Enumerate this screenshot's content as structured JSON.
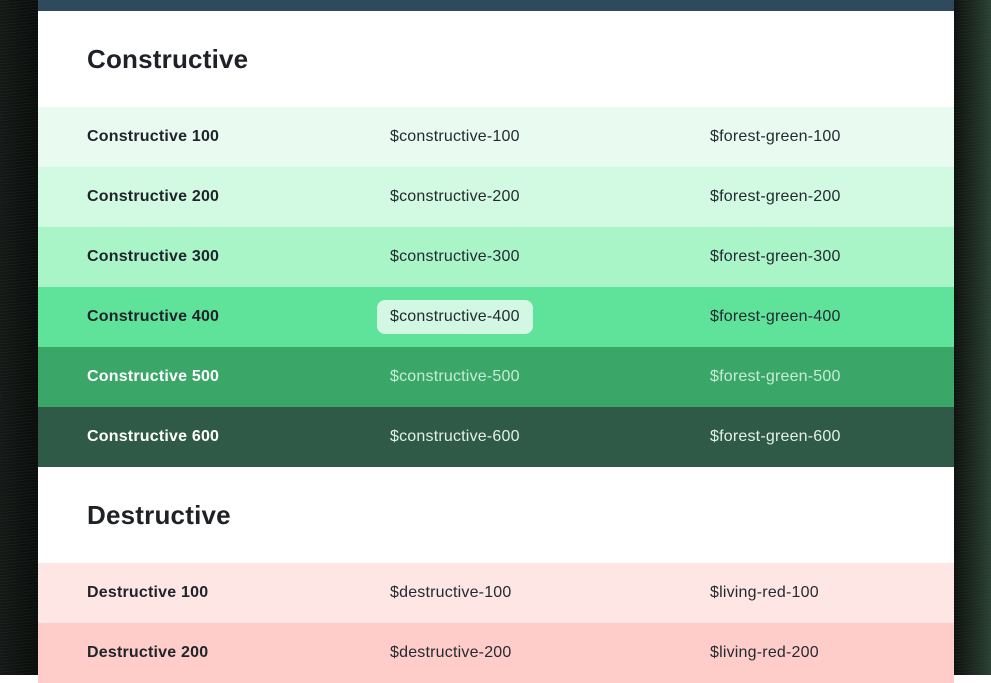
{
  "frame": {
    "backdrop_color": "#0b0d0c",
    "topbar_color": "#2f4a5d",
    "page_bg": "#ffffff",
    "highlight_pill_bg": "#d2f7e3",
    "heading_text_color": "#1e2126"
  },
  "sections": [
    {
      "title": "Constructive",
      "rows": [
        {
          "name": "Constructive 100",
          "variable": "$constructive-100",
          "alias": "$forest-green-100",
          "swatch": "#e9faf0",
          "label_color": "#1f232a",
          "value_color": "#242a31",
          "highlight_variable": false
        },
        {
          "name": "Constructive 200",
          "variable": "$constructive-200",
          "alias": "$forest-green-200",
          "swatch": "#d2fae3",
          "label_color": "#1f232a",
          "value_color": "#242a31",
          "highlight_variable": false
        },
        {
          "name": "Constructive 300",
          "variable": "$constructive-300",
          "alias": "$forest-green-300",
          "swatch": "#aaf5c8",
          "label_color": "#1f232a",
          "value_color": "#242a31",
          "highlight_variable": false
        },
        {
          "name": "Constructive 400",
          "variable": "$constructive-400",
          "alias": "$forest-green-400",
          "swatch": "#5fe29a",
          "label_color": "#1f232a",
          "value_color": "#242a31",
          "highlight_variable": true
        },
        {
          "name": "Constructive 500",
          "variable": "$constructive-500",
          "alias": "$forest-green-500",
          "swatch": "#3aa768",
          "label_color": "#ffffff",
          "value_color": "#c6ecd7",
          "highlight_variable": false
        },
        {
          "name": "Constructive 600",
          "variable": "$constructive-600",
          "alias": "$forest-green-600",
          "swatch": "#2f5a47",
          "label_color": "#ffffff",
          "value_color": "#e4f0ea",
          "highlight_variable": false
        }
      ]
    },
    {
      "title": "Destructive",
      "rows": [
        {
          "name": "Destructive 100",
          "variable": "$destructive-100",
          "alias": "$living-red-100",
          "swatch": "#fee6e4",
          "label_color": "#1f232a",
          "value_color": "#242a31",
          "highlight_variable": false
        },
        {
          "name": "Destructive 200",
          "variable": "$destructive-200",
          "alias": "$living-red-200",
          "swatch": "#fecdc9",
          "label_color": "#1f232a",
          "value_color": "#242a31",
          "highlight_variable": false
        }
      ]
    }
  ]
}
